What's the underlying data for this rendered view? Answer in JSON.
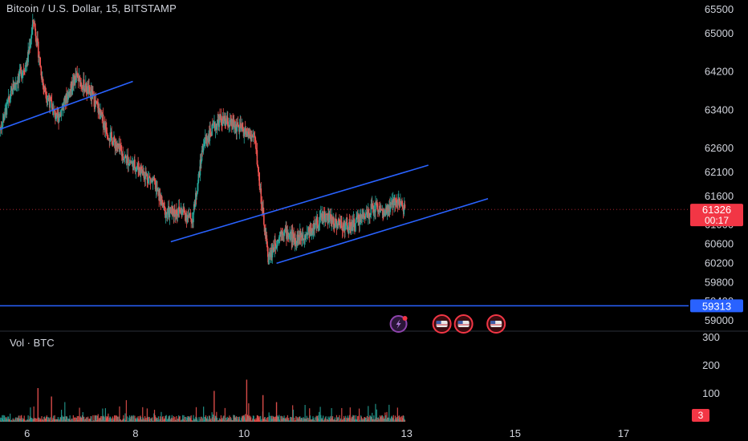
{
  "header": {
    "symbol_title": "Bitcoin / U.S. Dollar, 15, BITSTAMP"
  },
  "volume_pane": {
    "label": "Vol · BTC",
    "last_value": "3"
  },
  "price_badges": {
    "last_price": "61326",
    "countdown": "00:17",
    "support_level": "59313"
  },
  "colors": {
    "background": "#000000",
    "up": "#26a69a",
    "down": "#ef5350",
    "trendline": "#2962ff",
    "horizontal_line": "#2962ff",
    "last_price_badge": "#f23645",
    "support_badge": "#2962ff",
    "axis_text": "#d1d4dc"
  },
  "event_icons": [
    {
      "name": "lightning-event-icon",
      "date": "12.85"
    },
    {
      "name": "us-flag-event-icon",
      "date": "13.65"
    },
    {
      "name": "us-flag-event-icon",
      "date": "14.05"
    },
    {
      "name": "us-flag-event-icon",
      "date": "14.65"
    }
  ],
  "chart_data": {
    "type": "candlestick",
    "title": "Bitcoin / U.S. Dollar, 15, BITSTAMP",
    "x_axis": {
      "unit": "day",
      "range": [
        5.5,
        18.2
      ],
      "tick_labels": [
        "6",
        "8",
        "10",
        "13",
        "15",
        "17"
      ],
      "tick_values": [
        6,
        8,
        10,
        13,
        15,
        17
      ]
    },
    "y_axis": {
      "range": [
        58800,
        65700
      ],
      "tick_labels": [
        "65500",
        "65000",
        "64200",
        "63400",
        "62600",
        "62100",
        "61600",
        "61000",
        "60600",
        "60200",
        "59800",
        "59400",
        "59000"
      ],
      "tick_values": [
        65500,
        65000,
        64200,
        63400,
        62600,
        62100,
        61600,
        61000,
        60600,
        60200,
        59800,
        59400,
        59000
      ]
    },
    "volume_axis": {
      "range": [
        0,
        320
      ],
      "tick_labels": [
        "300",
        "200",
        "100"
      ],
      "tick_values": [
        300,
        200,
        100
      ]
    },
    "price_path": [
      [
        5.5,
        63000
      ],
      [
        5.75,
        63900
      ],
      [
        6.0,
        64400
      ],
      [
        6.12,
        65300
      ],
      [
        6.3,
        63900
      ],
      [
        6.55,
        63200
      ],
      [
        6.9,
        64100
      ],
      [
        7.2,
        63700
      ],
      [
        7.5,
        62900
      ],
      [
        7.8,
        62400
      ],
      [
        8.1,
        62150
      ],
      [
        8.35,
        61850
      ],
      [
        8.55,
        61250
      ],
      [
        8.85,
        61300
      ],
      [
        9.05,
        61100
      ],
      [
        9.25,
        62700
      ],
      [
        9.55,
        63200
      ],
      [
        9.95,
        63000
      ],
      [
        10.2,
        62800
      ],
      [
        10.35,
        61200
      ],
      [
        10.45,
        60300
      ],
      [
        10.7,
        60900
      ],
      [
        10.95,
        60700
      ],
      [
        11.25,
        60900
      ],
      [
        11.45,
        61200
      ],
      [
        11.7,
        61050
      ],
      [
        11.95,
        60950
      ],
      [
        12.2,
        61200
      ],
      [
        12.45,
        61400
      ],
      [
        12.6,
        61200
      ],
      [
        12.8,
        61550
      ],
      [
        12.97,
        61326
      ]
    ],
    "last_price": 61326,
    "horizontal_line": 59313,
    "trendlines": [
      {
        "x1": 5.5,
        "y1": 63000,
        "x2": 7.95,
        "y2": 64000
      },
      {
        "x1": 8.65,
        "y1": 60650,
        "x2": 13.4,
        "y2": 62250
      },
      {
        "x1": 10.6,
        "y1": 60200,
        "x2": 14.5,
        "y2": 61550
      }
    ],
    "volume_spikes": [
      {
        "x": 6.2,
        "v": 120
      },
      {
        "x": 6.45,
        "v": 90
      },
      {
        "x": 9.45,
        "v": 110
      },
      {
        "x": 10.05,
        "v": 150
      },
      {
        "x": 10.35,
        "v": 95
      },
      {
        "x": 10.6,
        "v": 70
      }
    ]
  }
}
